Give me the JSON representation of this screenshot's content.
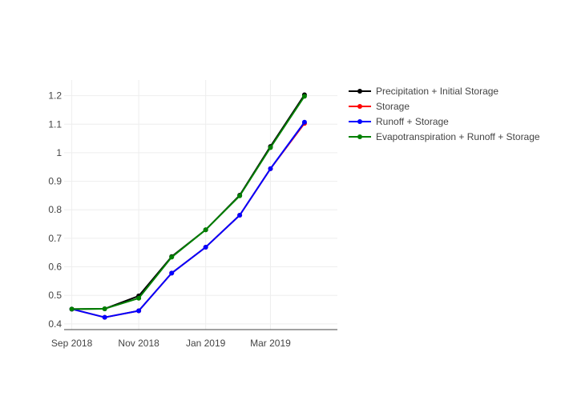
{
  "chart_data": {
    "type": "line",
    "x": [
      "2018-09-01",
      "2018-10-01",
      "2018-11-01",
      "2018-12-01",
      "2019-01-01",
      "2019-02-01",
      "2019-03-01",
      "2019-04-01"
    ],
    "x_ticks": [
      {
        "date": "2018-09-01",
        "label": "Sep 2018"
      },
      {
        "date": "2018-11-01",
        "label": "Nov 2018"
      },
      {
        "date": "2019-01-01",
        "label": "Jan 2019"
      },
      {
        "date": "2019-03-01",
        "label": "Mar 2019"
      }
    ],
    "y_ticks": [
      {
        "value": 0.4,
        "label": "0.4"
      },
      {
        "value": 0.5,
        "label": "0.5"
      },
      {
        "value": 0.6,
        "label": "0.6"
      },
      {
        "value": 0.7,
        "label": "0.7"
      },
      {
        "value": 0.8,
        "label": "0.8"
      },
      {
        "value": 0.9,
        "label": "0.9"
      },
      {
        "value": 1.0,
        "label": "1"
      },
      {
        "value": 1.1,
        "label": "1.1"
      },
      {
        "value": 1.2,
        "label": "1.2"
      }
    ],
    "xlim": [
      "2018-08-25",
      "2019-05-01"
    ],
    "ylim": [
      0.38,
      1.255
    ],
    "grid": true,
    "legend_position": "top-right",
    "series": [
      {
        "name": "Precipitation + Initial Storage",
        "color": "#000000",
        "values": [
          0.452,
          0.453,
          0.498,
          0.636,
          0.73,
          0.851,
          1.022,
          1.203
        ]
      },
      {
        "name": "Storage",
        "color": "#ff0000",
        "values": [
          0.452,
          0.423,
          0.446,
          0.578,
          0.669,
          0.781,
          0.944,
          1.103
        ]
      },
      {
        "name": "Runoff + Storage",
        "color": "#0000ff",
        "values": [
          0.452,
          0.423,
          0.446,
          0.578,
          0.669,
          0.781,
          0.944,
          1.107
        ]
      },
      {
        "name": "Evapotranspiration + Runoff + Storage",
        "color": "#008000",
        "values": [
          0.452,
          0.453,
          0.49,
          0.634,
          0.73,
          0.849,
          1.018,
          1.198
        ]
      }
    ]
  }
}
